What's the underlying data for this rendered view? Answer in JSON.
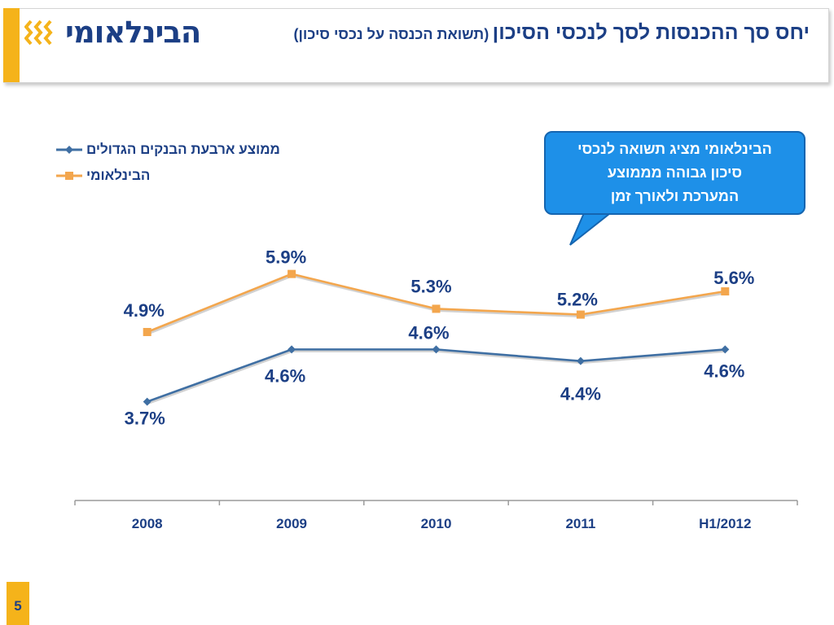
{
  "header": {
    "logo_text": "הבינלאומי",
    "title_main": "יחס סך ההכנסות לסך לנכסי הסיכון",
    "title_sub": "(תשואת הכנסה על נכסי סיכון)"
  },
  "callout": {
    "line1": "הבינלאומי מציג תשואה לנכסי",
    "line2": "סיכון גבוהה מממוצע",
    "line3": "המערכת ולאורך זמן"
  },
  "page_number": "5",
  "colors": {
    "brand_blue": "#1c3f85",
    "accent_orange": "#f5b31a",
    "series_blue": "#3f6fa3",
    "series_orange": "#f3a64d",
    "callout_blue": "#1e90e8"
  },
  "chart_data": {
    "type": "line",
    "categories": [
      "2008",
      "2009",
      "2010",
      "2011",
      "H1/2012"
    ],
    "series": [
      {
        "name": "ממוצע ארבעת הבנקים הגדולים",
        "values": [
          3.7,
          4.6,
          4.6,
          4.4,
          4.6
        ],
        "labels": [
          "3.7%",
          "4.6%",
          "4.6%",
          "4.4%",
          "4.6%"
        ],
        "color": "#3f6fa3",
        "marker": "diamond"
      },
      {
        "name": "הבינלאומי",
        "values": [
          4.9,
          5.9,
          5.3,
          5.2,
          5.6
        ],
        "labels": [
          "4.9%",
          "5.9%",
          "5.3%",
          "5.2%",
          "5.6%"
        ],
        "color": "#f3a64d",
        "marker": "square"
      }
    ],
    "unit": "%",
    "ylim": [
      0,
      7
    ],
    "grid": false,
    "legend_position": "top-left"
  }
}
